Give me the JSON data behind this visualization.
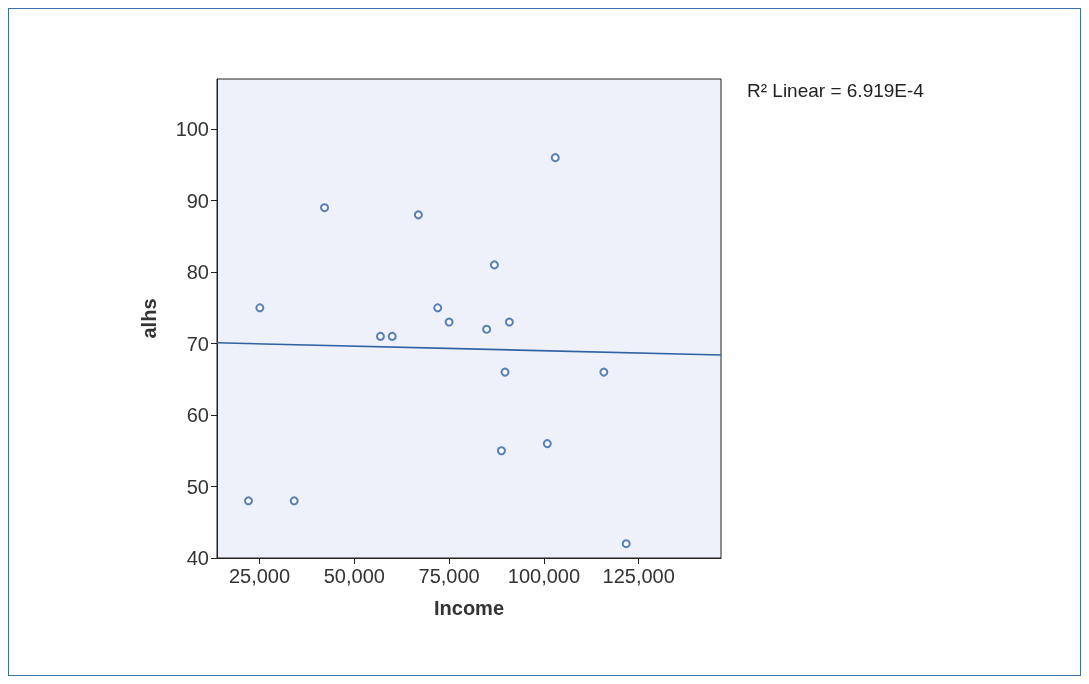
{
  "chart_data": {
    "type": "scatter",
    "xlabel": "Income",
    "ylabel": "alhs",
    "annotations": [
      "R² Linear = 6.919E-4"
    ],
    "xlim": [
      13800,
      146700
    ],
    "ylim": [
      40,
      107
    ],
    "xticks": [
      {
        "value": 25000,
        "label": "25,000"
      },
      {
        "value": 50000,
        "label": "50,000"
      },
      {
        "value": 75000,
        "label": "75,000"
      },
      {
        "value": 100000,
        "label": "100,000"
      },
      {
        "value": 125000,
        "label": "125,000"
      }
    ],
    "yticks": [
      40,
      50,
      60,
      70,
      80,
      90,
      100
    ],
    "grid": false,
    "marker": "circle",
    "series": [
      {
        "color": "#2f62a3",
        "x": [
          22100,
          34150,
          56900,
          60000,
          89750,
          115800,
          88800,
          100900,
          121700,
          25100,
          42150,
          66900,
          103000,
          86950,
          72000,
          75000,
          84900,
          90900
        ],
        "values": [
          48,
          48,
          71,
          71,
          66,
          66,
          55,
          56,
          42,
          75,
          89,
          88,
          96,
          81,
          75,
          73,
          72,
          73
        ]
      },
      {
        "type": "line",
        "color": "#2f62a3",
        "x": [
          13800,
          146700
        ],
        "values": [
          70.1,
          68.4
        ],
        "marker": "none",
        "line_style": "solid"
      }
    ]
  }
}
